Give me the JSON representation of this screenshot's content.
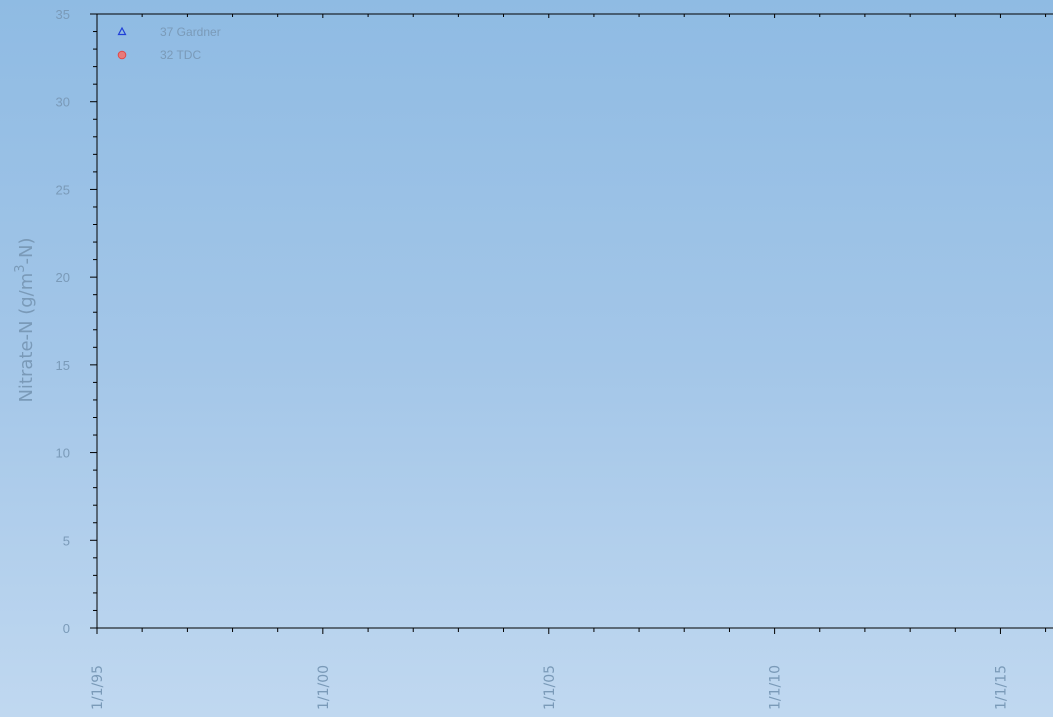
{
  "chart_data": {
    "type": "scatter",
    "title": "",
    "ylabel": "Nitrate-N (g/m3-N)",
    "ylabel_parts": {
      "base": "Nitrate-N (g/m",
      "sup": "3",
      "tail": "-N)"
    },
    "xlabel": "",
    "ylim": [
      0,
      35
    ],
    "yticks": [
      0,
      5,
      10,
      15,
      20,
      25,
      30,
      35
    ],
    "xlim": [
      "1995-01-01",
      "2016-03-01"
    ],
    "xticks": [
      {
        "label": "1/1/95",
        "date": "1995-01-01"
      },
      {
        "label": "1/1/00",
        "date": "2000-01-01"
      },
      {
        "label": "1/1/05",
        "date": "2005-01-01"
      },
      {
        "label": "1/1/10",
        "date": "2010-01-01"
      },
      {
        "label": "1/1/15",
        "date": "2015-01-01"
      }
    ],
    "legend_position": "top-left",
    "series": [
      {
        "name": "37 Gardner",
        "marker": "triangle",
        "color": "#1f3fd8",
        "points": []
      },
      {
        "name": "32 TDC",
        "marker": "circle",
        "color": "#e04848",
        "points": []
      }
    ],
    "grid": false
  }
}
